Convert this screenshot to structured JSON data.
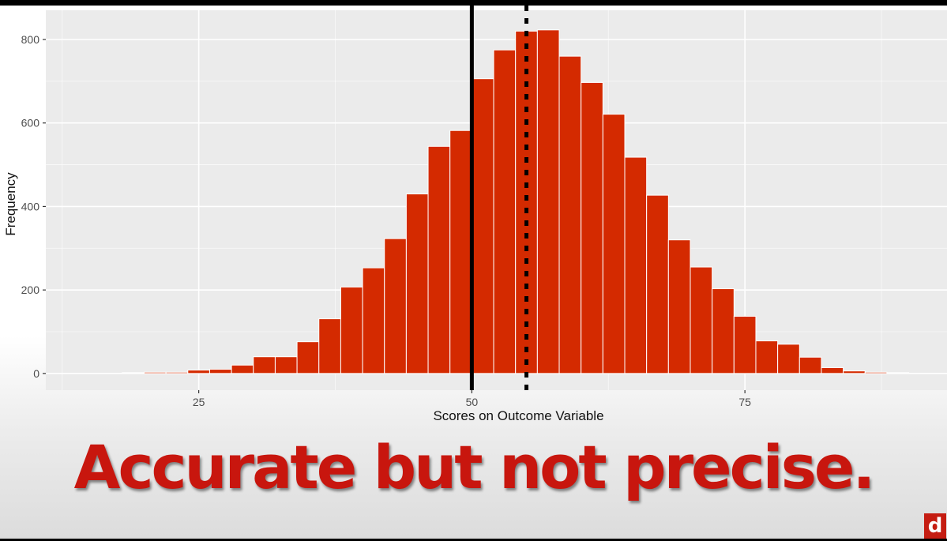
{
  "caption": "Accurate but not precise.",
  "logo_text": "d",
  "colors": {
    "bar_fill": "#d42a00",
    "bar_outline": "#ffffff",
    "panel_background": "#ebebeb",
    "grid": "#ffffff",
    "caption": "#c8160e",
    "reference_line": "#000000"
  },
  "chart_data": {
    "type": "bar",
    "title": "",
    "xlabel": "Scores on Outcome Variable",
    "ylabel": "Frequency",
    "xlim": [
      11,
      93.5
    ],
    "ylim": [
      -40,
      870
    ],
    "x_ticks": [
      25,
      50,
      75
    ],
    "y_ticks": [
      0,
      200,
      400,
      600,
      800
    ],
    "bin_width": 2,
    "bins": [
      {
        "x": 19,
        "count": 1
      },
      {
        "x": 21,
        "count": 3
      },
      {
        "x": 23,
        "count": 3
      },
      {
        "x": 25,
        "count": 8
      },
      {
        "x": 27,
        "count": 10
      },
      {
        "x": 29,
        "count": 20
      },
      {
        "x": 31,
        "count": 40
      },
      {
        "x": 33,
        "count": 40
      },
      {
        "x": 35,
        "count": 76
      },
      {
        "x": 37,
        "count": 131
      },
      {
        "x": 39,
        "count": 207
      },
      {
        "x": 41,
        "count": 253
      },
      {
        "x": 43,
        "count": 323
      },
      {
        "x": 45,
        "count": 430
      },
      {
        "x": 47,
        "count": 544
      },
      {
        "x": 49,
        "count": 582
      },
      {
        "x": 51,
        "count": 706
      },
      {
        "x": 53,
        "count": 775
      },
      {
        "x": 55,
        "count": 820
      },
      {
        "x": 57,
        "count": 823
      },
      {
        "x": 59,
        "count": 760
      },
      {
        "x": 61,
        "count": 697
      },
      {
        "x": 63,
        "count": 621
      },
      {
        "x": 65,
        "count": 518
      },
      {
        "x": 67,
        "count": 427
      },
      {
        "x": 69,
        "count": 320
      },
      {
        "x": 71,
        "count": 255
      },
      {
        "x": 73,
        "count": 203
      },
      {
        "x": 75,
        "count": 137
      },
      {
        "x": 77,
        "count": 78
      },
      {
        "x": 79,
        "count": 70
      },
      {
        "x": 81,
        "count": 39
      },
      {
        "x": 83,
        "count": 14
      },
      {
        "x": 85,
        "count": 6
      },
      {
        "x": 87,
        "count": 3
      },
      {
        "x": 89,
        "count": 1
      }
    ],
    "reference_lines": [
      {
        "x": 50,
        "style": "solid"
      },
      {
        "x": 55,
        "style": "dotted"
      }
    ],
    "grid": true,
    "legend": "none"
  }
}
